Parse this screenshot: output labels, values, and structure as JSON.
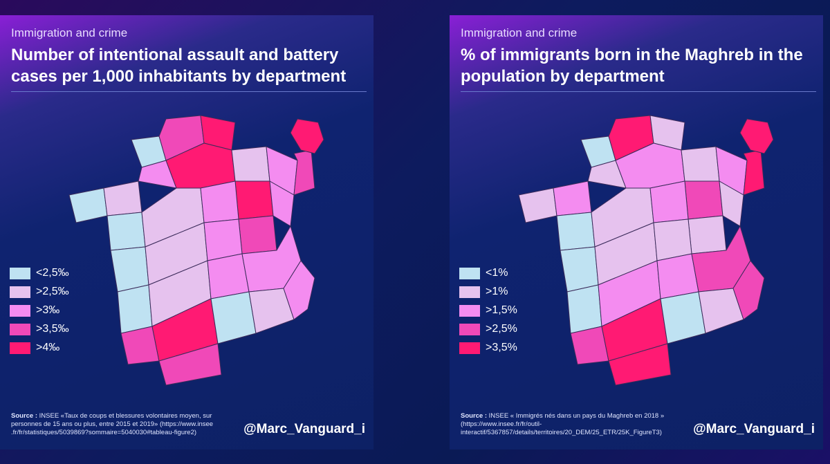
{
  "colors": {
    "c1": "#bfe2f2",
    "c2": "#e6c2ee",
    "c3": "#f48cf0",
    "c4": "#f049b8",
    "c5": "#ff1a73"
  },
  "left": {
    "subtitle": "Immigration and crime",
    "title": "Number of intentional assault and battery cases per 1,000 inhabitants by department",
    "legend": [
      {
        "label": "<2,5‰",
        "color": "#bfe2f2"
      },
      {
        "label": ">2,5‰",
        "color": "#e6c2ee"
      },
      {
        "label": ">3‰",
        "color": "#f48cf0"
      },
      {
        "label": ">3,5‰",
        "color": "#f049b8"
      },
      {
        "label": ">4‰",
        "color": "#ff1a73"
      }
    ],
    "source_label": "Source :",
    "source_text": "INSEE «Taux de coups et blessures volontaires moyen, sur personnes de 15 ans ou plus, entre 2015 et 2019» (https://www.insee .fr/fr/statistiques/5039869?sommaire=5040030#tableau-figure2)",
    "handle": "@Marc_Vanguard_i"
  },
  "right": {
    "subtitle": "Immigration and crime",
    "title": "% of immigrants born in the Maghreb in the population by department",
    "legend": [
      {
        "label": "<1%",
        "color": "#bfe2f2"
      },
      {
        "label": ">1%",
        "color": "#e6c2ee"
      },
      {
        "label": ">1,5%",
        "color": "#f48cf0"
      },
      {
        "label": ">2,5%",
        "color": "#f049b8"
      },
      {
        "label": ">3,5%",
        "color": "#ff1a73"
      }
    ],
    "source_label": "Source :",
    "source_text": "INSEE « Immigrés nés dans un pays du Maghreb en 2018 » (https://www.insee.fr/fr/outil-interactif/5367857/details/territoires/20_DEM/25_ETR/25K_FigureT3)",
    "handle": "@Marc_Vanguard_i"
  },
  "regions": {
    "left": [
      "c1",
      "c1",
      "c2",
      "c3",
      "c4",
      "c5",
      "c5",
      "c2",
      "c3",
      "c4",
      "c5",
      "c3",
      "c1",
      "c2",
      "c3",
      "c4",
      "c1",
      "c2",
      "c3",
      "c1",
      "c2",
      "c3",
      "c3",
      "c4",
      "c5",
      "c1",
      "c2",
      "c3",
      "c4",
      "c5"
    ],
    "right": [
      "c1",
      "c2",
      "c3",
      "c2",
      "c5",
      "c2",
      "c3",
      "c2",
      "c3",
      "c5",
      "c4",
      "c2",
      "c1",
      "c2",
      "c3",
      "c2",
      "c1",
      "c2",
      "c2",
      "c1",
      "c3",
      "c3",
      "c4",
      "c4",
      "c5",
      "c1",
      "c2",
      "c4",
      "c5",
      "c5"
    ]
  }
}
